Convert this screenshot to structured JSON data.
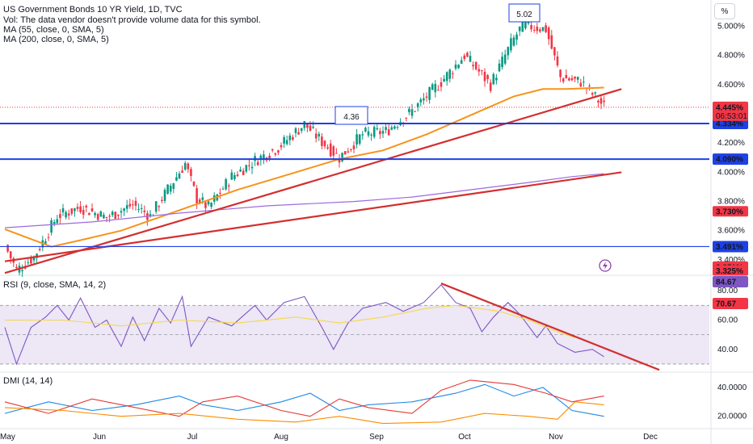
{
  "legend": {
    "title": "US Government Bonds 10 YR Yield, 1D, TVC",
    "vol": "Vol: The data vendor doesn't provide volume data for this symbol.",
    "ma55": "MA (55, close, 0, SMA, 5)",
    "ma200": "MA (200, close, 0, SMA, 5)",
    "rsi": "RSI (9, close, SMA, 14, 2)",
    "dmi": "DMI (14, 14)"
  },
  "percent_button": "%",
  "colors": {
    "up": "#089981",
    "down": "#f23645",
    "ma55": "#f7931a",
    "ma200": "#9c6ade",
    "trend": "#d32f2f",
    "level": "#1e40e6",
    "rsi": "#7e57c2",
    "rsi_ma": "#f5d94a",
    "rsi_band": "#ede7f6",
    "dmi_plus": "#1e88e5",
    "dmi_minus": "#e53935",
    "adx": "#fb8c00"
  },
  "chart_data": [
    {
      "type": "candlestick",
      "title": "US Government Bonds 10 YR Yield, 1D, TVC",
      "x_labels": [
        "May",
        "Jun",
        "Jul",
        "Aug",
        "Sep",
        "Oct",
        "Nov",
        "Dec"
      ],
      "y_ticks": [
        "5.000%",
        "4.800%",
        "4.600%",
        "4.200%",
        "4.000%",
        "3.800%",
        "3.600%",
        "3.400%"
      ],
      "ylim": [
        3.3,
        5.18
      ],
      "anchors_close": [
        [
          0,
          3.5
        ],
        [
          4,
          3.33
        ],
        [
          10,
          3.42
        ],
        [
          18,
          3.7
        ],
        [
          26,
          3.76
        ],
        [
          35,
          3.69
        ],
        [
          44,
          3.78
        ],
        [
          50,
          3.7
        ],
        [
          57,
          3.91
        ],
        [
          62,
          4.06
        ],
        [
          66,
          3.82
        ],
        [
          70,
          3.76
        ],
        [
          78,
          3.97
        ],
        [
          86,
          4.08
        ],
        [
          94,
          4.17
        ],
        [
          103,
          4.33
        ],
        [
          109,
          4.21
        ],
        [
          115,
          4.1
        ],
        [
          123,
          4.26
        ],
        [
          131,
          4.28
        ],
        [
          140,
          4.42
        ],
        [
          150,
          4.62
        ],
        [
          158,
          4.8
        ],
        [
          167,
          4.6
        ],
        [
          174,
          4.88
        ],
        [
          178,
          5.01
        ],
        [
          186,
          4.98
        ],
        [
          191,
          4.65
        ],
        [
          198,
          4.62
        ],
        [
          206,
          4.45
        ]
      ],
      "moving_averages": [
        {
          "name": "MA (55, close, 0, SMA, 5)",
          "points": [
            [
              0,
              3.61
            ],
            [
              8,
              3.55
            ],
            [
              16,
              3.49
            ],
            [
              25,
              3.53
            ],
            [
              40,
              3.6
            ],
            [
              60,
              3.74
            ],
            [
              80,
              3.88
            ],
            [
              100,
              4.0
            ],
            [
              115,
              4.09
            ],
            [
              130,
              4.15
            ],
            [
              145,
              4.26
            ],
            [
              160,
              4.39
            ],
            [
              175,
              4.52
            ],
            [
              185,
              4.57
            ],
            [
              193,
              4.57
            ],
            [
              206,
              4.58
            ]
          ]
        },
        {
          "name": "MA (200, close, 0, SMA, 5)",
          "points": [
            [
              0,
              3.62
            ],
            [
              30,
              3.66
            ],
            [
              60,
              3.72
            ],
            [
              90,
              3.77
            ],
            [
              120,
              3.8
            ],
            [
              140,
              3.83
            ],
            [
              160,
              3.88
            ],
            [
              180,
              3.93
            ],
            [
              195,
              3.97
            ],
            [
              206,
              3.99
            ]
          ]
        }
      ],
      "price_labels": [
        {
          "text": "5.02",
          "value": 5.02
        },
        {
          "text": "4.36",
          "value": 4.36
        }
      ],
      "horizontal_levels": [
        {
          "value": 4.334,
          "label": "4.334%"
        },
        {
          "value": 4.09,
          "label": "4.090%"
        },
        {
          "value": 3.491,
          "label": "3.491%"
        }
      ],
      "axis_badges": [
        {
          "label": "4.445%",
          "sub": "06:53:01",
          "value": 4.445
        },
        {
          "label": "3.730%",
          "value": 3.73
        },
        {
          "label": "3.351%",
          "value": 3.351
        },
        {
          "label": "3.325%",
          "value": 3.325
        }
      ],
      "trendlines": [
        {
          "from": [
            0,
            3.31
          ],
          "to": [
            212,
            4.57
          ]
        },
        {
          "from": [
            0,
            3.39
          ],
          "to": [
            212,
            4.0
          ]
        }
      ],
      "last_value": 4.445
    },
    {
      "type": "line",
      "title": "RSI (9, close, SMA, 14, 2)",
      "y_ticks": [
        "80.00",
        "60.00",
        "40.00"
      ],
      "ylim": [
        25,
        90
      ],
      "bands": {
        "upper": 70,
        "mid": 50,
        "lower": 30
      },
      "series": [
        {
          "name": "RSI",
          "points": [
            [
              0,
              55
            ],
            [
              4,
              30
            ],
            [
              9,
              55
            ],
            [
              14,
              62
            ],
            [
              18,
              70
            ],
            [
              22,
              60
            ],
            [
              26,
              75
            ],
            [
              31,
              55
            ],
            [
              35,
              60
            ],
            [
              40,
              42
            ],
            [
              44,
              62
            ],
            [
              48,
              46
            ],
            [
              53,
              68
            ],
            [
              57,
              58
            ],
            [
              61,
              76
            ],
            [
              64,
              42
            ],
            [
              70,
              62
            ],
            [
              78,
              56
            ],
            [
              86,
              70
            ],
            [
              90,
              60
            ],
            [
              96,
              72
            ],
            [
              103,
              76
            ],
            [
              109,
              55
            ],
            [
              113,
              40
            ],
            [
              118,
              58
            ],
            [
              123,
              68
            ],
            [
              131,
              72
            ],
            [
              137,
              66
            ],
            [
              144,
              72
            ],
            [
              150,
              84
            ],
            [
              155,
              72
            ],
            [
              160,
              68
            ],
            [
              164,
              52
            ],
            [
              168,
              62
            ],
            [
              173,
              72
            ],
            [
              177,
              64
            ],
            [
              183,
              48
            ],
            [
              186,
              56
            ],
            [
              190,
              44
            ],
            [
              196,
              38
            ],
            [
              202,
              40
            ],
            [
              206,
              35
            ]
          ]
        },
        {
          "name": "RSI-based MA",
          "points": [
            [
              0,
              60
            ],
            [
              20,
              60
            ],
            [
              40,
              56
            ],
            [
              60,
              60
            ],
            [
              80,
              58
            ],
            [
              100,
              62
            ],
            [
              115,
              58
            ],
            [
              130,
              62
            ],
            [
              145,
              68
            ],
            [
              155,
              70
            ],
            [
              170,
              66
            ],
            [
              180,
              60
            ],
            [
              190,
              52
            ],
            [
              196,
              48
            ]
          ]
        }
      ],
      "trendline": {
        "from": [
          150,
          85
        ],
        "to": [
          225,
          26
        ]
      },
      "badges": [
        "84.67",
        "70.67"
      ]
    },
    {
      "type": "line",
      "title": "DMI (14, 14)",
      "y_ticks": [
        "40.0000",
        "20.0000"
      ],
      "ylim": [
        12,
        50
      ],
      "series": [
        {
          "name": "+DI",
          "points": [
            [
              0,
              22
            ],
            [
              15,
              30
            ],
            [
              30,
              24
            ],
            [
              45,
              28
            ],
            [
              60,
              34
            ],
            [
              68,
              28
            ],
            [
              80,
              24
            ],
            [
              95,
              30
            ],
            [
              105,
              36
            ],
            [
              115,
              24
            ],
            [
              125,
              28
            ],
            [
              140,
              30
            ],
            [
              155,
              36
            ],
            [
              165,
              42
            ],
            [
              175,
              34
            ],
            [
              185,
              40
            ],
            [
              195,
              24
            ],
            [
              206,
              20
            ]
          ]
        },
        {
          "name": "-DI",
          "points": [
            [
              0,
              30
            ],
            [
              15,
              22
            ],
            [
              30,
              32
            ],
            [
              45,
              26
            ],
            [
              60,
              20
            ],
            [
              68,
              30
            ],
            [
              80,
              34
            ],
            [
              95,
              24
            ],
            [
              105,
              20
            ],
            [
              115,
              32
            ],
            [
              125,
              26
            ],
            [
              140,
              22
            ],
            [
              150,
              38
            ],
            [
              160,
              45
            ],
            [
              175,
              42
            ],
            [
              186,
              36
            ],
            [
              195,
              30
            ],
            [
              206,
              34
            ]
          ]
        },
        {
          "name": "ADX",
          "points": [
            [
              0,
              26
            ],
            [
              20,
              24
            ],
            [
              40,
              20
            ],
            [
              60,
              22
            ],
            [
              80,
              18
            ],
            [
              100,
              16
            ],
            [
              115,
              20
            ],
            [
              130,
              15
            ],
            [
              150,
              16
            ],
            [
              165,
              22
            ],
            [
              180,
              20
            ],
            [
              190,
              18
            ],
            [
              196,
              30
            ],
            [
              206,
              28
            ]
          ]
        }
      ]
    }
  ]
}
